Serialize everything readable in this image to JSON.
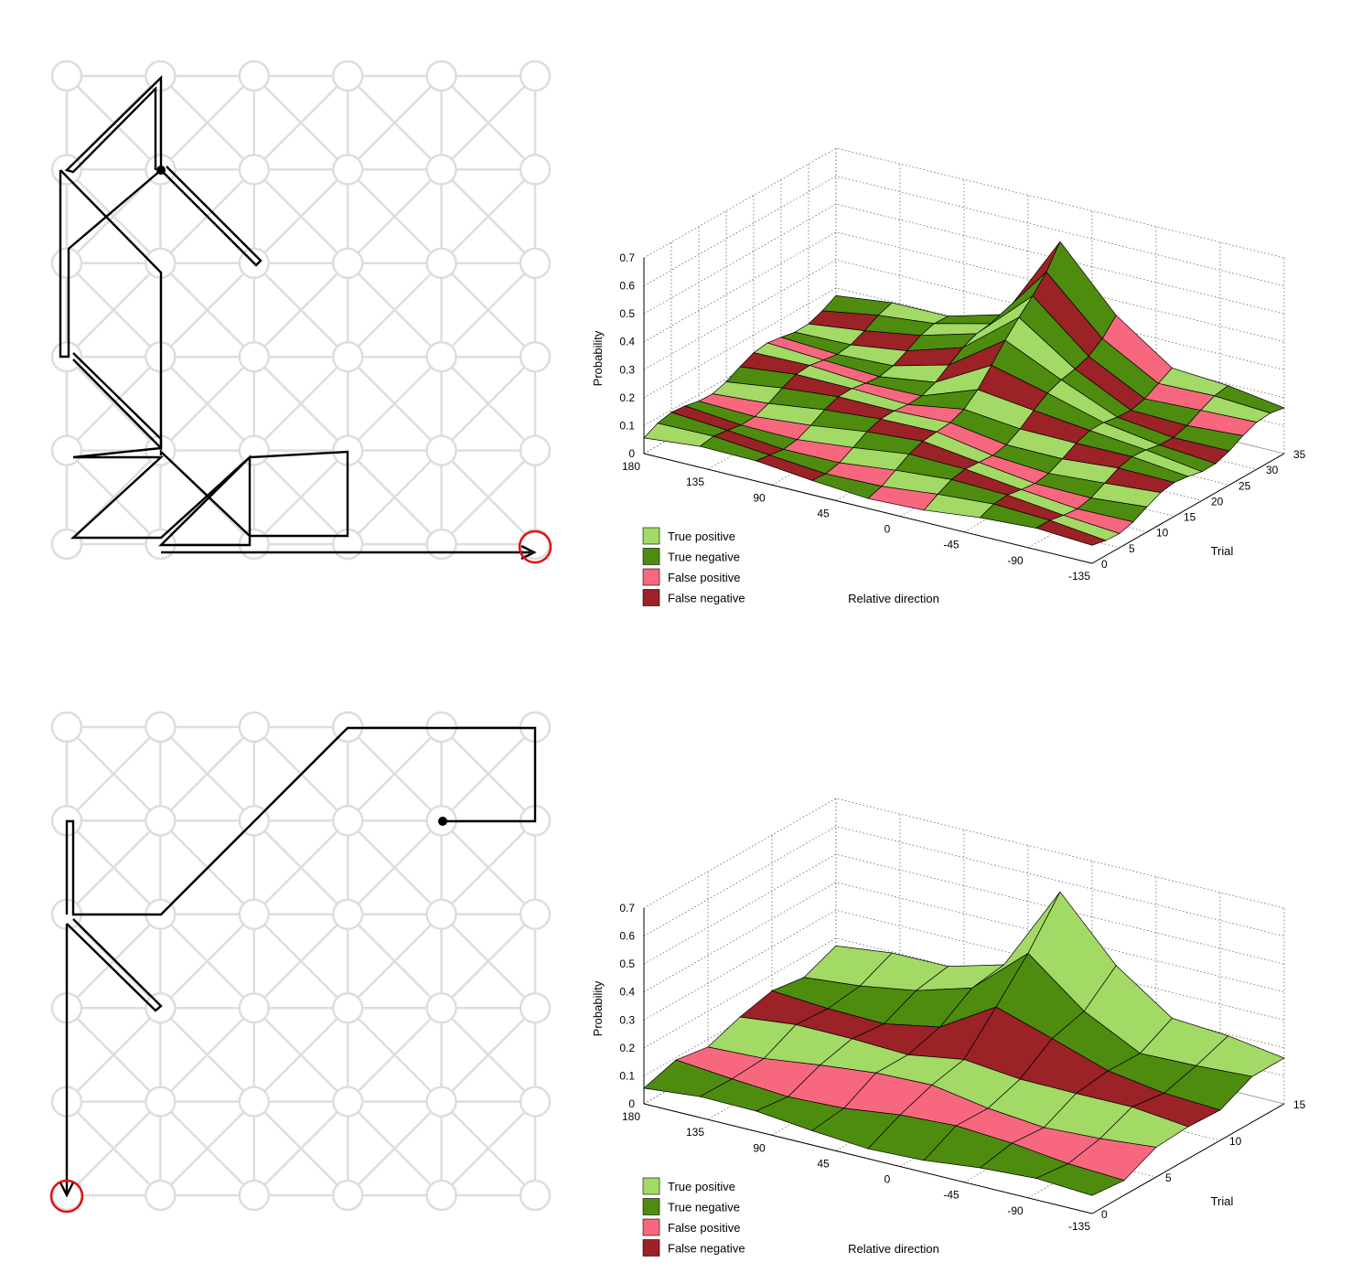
{
  "colors": {
    "true_positive": "#a3d965",
    "true_negative": "#4e8c0f",
    "false_positive": "#f7677e",
    "false_negative": "#9b2226",
    "grid_node": "#dddddd",
    "path": "#000000",
    "target": "#e01010"
  },
  "legend": [
    "True positive",
    "True negative",
    "False positive",
    "False negative"
  ],
  "chart_data": [
    {
      "type": "grid-path",
      "grid": {
        "columns": 6,
        "rows": 6
      },
      "path": [
        [
          1,
          1
        ],
        [
          1,
          0
        ],
        [
          0,
          1
        ],
        [
          0,
          3
        ],
        [
          1,
          4
        ],
        [
          1,
          2
        ],
        [
          0,
          1
        ]
      ],
      "start": [
        1,
        1
      ],
      "target": [
        5,
        5
      ]
    },
    {
      "type": "surface3d",
      "xlabel": "Relative direction",
      "ylabel": "Trial",
      "zlabel": "Probability",
      "x_ticks": [
        "180",
        "135",
        "90",
        "45",
        "0",
        "-45",
        "-90",
        "-135"
      ],
      "y_ticks": [
        "0",
        "5",
        "10",
        "15",
        "20",
        "25",
        "30",
        "35"
      ],
      "z_ticks": [
        "0",
        "0.1",
        "0.2",
        "0.3",
        "0.4",
        "0.5",
        "0.6",
        "0.7"
      ],
      "xlim": [
        180,
        -135
      ],
      "ylim": [
        0,
        35
      ],
      "zlim": [
        0,
        0.7
      ],
      "grid": true,
      "legend_position": "bottom-left",
      "peak": {
        "direction": 0,
        "trial": 35,
        "probability": 0.65
      }
    },
    {
      "type": "grid-path",
      "grid": {
        "columns": 6,
        "rows": 6
      },
      "start": [
        4,
        1
      ],
      "target": [
        0,
        5
      ]
    },
    {
      "type": "surface3d",
      "xlabel": "Relative direction",
      "ylabel": "Trial",
      "zlabel": "Probability",
      "x_ticks": [
        "180",
        "135",
        "90",
        "45",
        "0",
        "-45",
        "-90",
        "-135"
      ],
      "y_ticks": [
        "0",
        "5",
        "10",
        "15"
      ],
      "z_ticks": [
        "0",
        "0.1",
        "0.2",
        "0.3",
        "0.4",
        "0.5",
        "0.6",
        "0.7"
      ],
      "xlim": [
        180,
        -135
      ],
      "ylim": [
        0,
        15
      ],
      "zlim": [
        0,
        0.7
      ],
      "grid": true,
      "legend_position": "bottom-left",
      "peak": {
        "direction": 0,
        "trial": 15,
        "probability": 0.65
      }
    }
  ]
}
